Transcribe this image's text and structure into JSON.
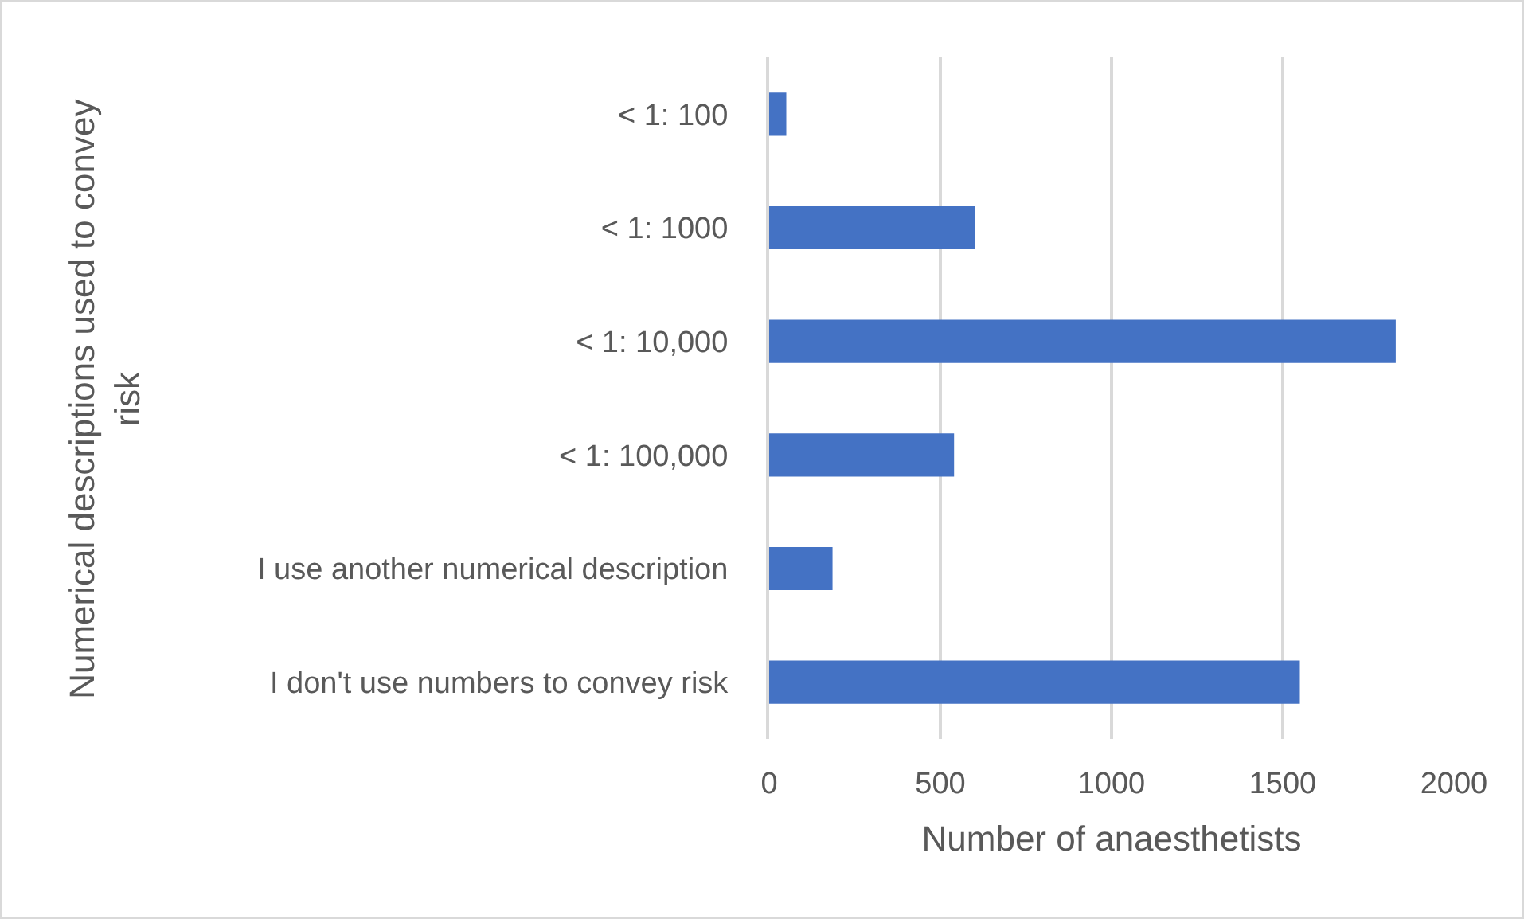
{
  "chart_data": {
    "type": "bar",
    "orientation": "horizontal",
    "xlabel": "Number of anaesthetists",
    "ylabel": "Numerical descriptions used to convey risk",
    "categories": [
      "< 1: 100",
      "< 1: 1000",
      "< 1: 10,000",
      "< 1: 100,000",
      "I use another numerical description",
      "I don't use numbers to convey risk"
    ],
    "values": [
      50,
      600,
      1830,
      540,
      185,
      1550
    ],
    "color": "#4472c4",
    "xlim": [
      0,
      2000
    ],
    "xticks": [
      0,
      500,
      1000,
      1500,
      2000
    ],
    "grid": "x"
  }
}
